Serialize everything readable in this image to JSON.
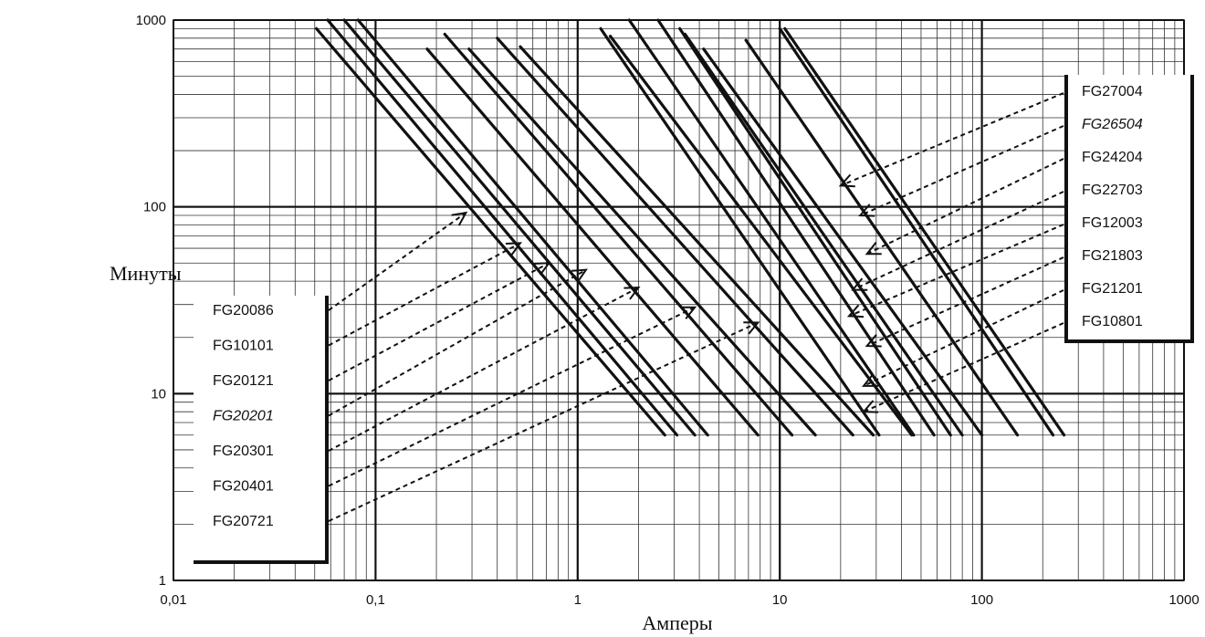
{
  "chart_data": {
    "type": "line",
    "xlabel": "Амперы",
    "ylabel": "Минуты",
    "x_scale": "log",
    "y_scale": "log",
    "xlim": [
      0.01,
      1000
    ],
    "ylim": [
      1,
      1000
    ],
    "x_ticks": [
      {
        "value": 0.01,
        "label": "0,01"
      },
      {
        "value": 0.1,
        "label": "0,1"
      },
      {
        "value": 1,
        "label": "1"
      },
      {
        "value": 10,
        "label": "10"
      },
      {
        "value": 100,
        "label": "100"
      },
      {
        "value": 1000,
        "label": "1000"
      }
    ],
    "y_ticks": [
      {
        "value": 1,
        "label": "1"
      },
      {
        "value": 10,
        "label": "10"
      },
      {
        "value": 100,
        "label": "100"
      },
      {
        "value": 1000,
        "label": "1000"
      }
    ],
    "grid": true,
    "curves": [
      {
        "x": [
          0.051,
          2.7
        ],
        "y": [
          900,
          6
        ]
      },
      {
        "x": [
          0.058,
          3.1
        ],
        "y": [
          1000,
          6
        ]
      },
      {
        "x": [
          0.07,
          3.8
        ],
        "y": [
          1000,
          6
        ]
      },
      {
        "x": [
          0.082,
          4.4
        ],
        "y": [
          1000,
          6
        ]
      },
      {
        "x": [
          0.18,
          7.8
        ],
        "y": [
          700,
          6
        ]
      },
      {
        "x": [
          0.22,
          11.5
        ],
        "y": [
          840,
          6
        ]
      },
      {
        "x": [
          0.29,
          15
        ],
        "y": [
          700,
          6
        ]
      },
      {
        "x": [
          0.4,
          23
        ],
        "y": [
          800,
          6
        ]
      },
      {
        "x": [
          0.52,
          29
        ],
        "y": [
          720,
          6
        ]
      },
      {
        "x": [
          1.3,
          31
        ],
        "y": [
          900,
          6
        ]
      },
      {
        "x": [
          1.45,
          45
        ],
        "y": [
          820,
          6
        ]
      },
      {
        "x": [
          1.8,
          46
        ],
        "y": [
          1000,
          6
        ]
      },
      {
        "x": [
          2.5,
          58
        ],
        "y": [
          1000,
          6
        ]
      },
      {
        "x": [
          3.2,
          70
        ],
        "y": [
          900,
          6
        ]
      },
      {
        "x": [
          3.4,
          80
        ],
        "y": [
          840,
          6
        ]
      },
      {
        "x": [
          4.2,
          100
        ],
        "y": [
          700,
          6
        ]
      },
      {
        "x": [
          6.8,
          150
        ],
        "y": [
          780,
          6
        ]
      },
      {
        "x": [
          10,
          225
        ],
        "y": [
          900,
          6
        ]
      },
      {
        "x": [
          10.6,
          255
        ],
        "y": [
          900,
          6
        ]
      }
    ],
    "series_labels_right": [
      {
        "name": "FG27004",
        "anchor": [
          20,
          130
        ],
        "italic": false
      },
      {
        "name": "FG26504",
        "anchor": [
          25,
          90
        ],
        "italic": true
      },
      {
        "name": "FG24204",
        "anchor": [
          27,
          56
        ],
        "italic": false
      },
      {
        "name": "FG22703",
        "anchor": [
          23,
          36
        ],
        "italic": false
      },
      {
        "name": "FG12003",
        "anchor": [
          22,
          26
        ],
        "italic": false
      },
      {
        "name": "FG21803",
        "anchor": [
          27,
          18
        ],
        "italic": false
      },
      {
        "name": "FG21201",
        "anchor": [
          26,
          11
        ],
        "italic": false
      },
      {
        "name": "FG10801",
        "anchor": [
          26,
          8
        ],
        "italic": false
      }
    ],
    "series_labels_left": [
      {
        "name": "FG20086",
        "anchor": [
          0.28,
          93
        ],
        "italic": false
      },
      {
        "name": "FG10101",
        "anchor": [
          0.52,
          64
        ],
        "italic": false
      },
      {
        "name": "FG20121",
        "anchor": [
          0.72,
          50
        ],
        "italic": false
      },
      {
        "name": "FG20201",
        "anchor": [
          1.1,
          46
        ],
        "italic": true
      },
      {
        "name": "FG20301",
        "anchor": [
          2.0,
          37
        ],
        "italic": false
      },
      {
        "name": "FG20401",
        "anchor": [
          3.8,
          29
        ],
        "italic": false
      },
      {
        "name": "FG20721",
        "anchor": [
          7.8,
          24
        ],
        "italic": false
      }
    ]
  }
}
